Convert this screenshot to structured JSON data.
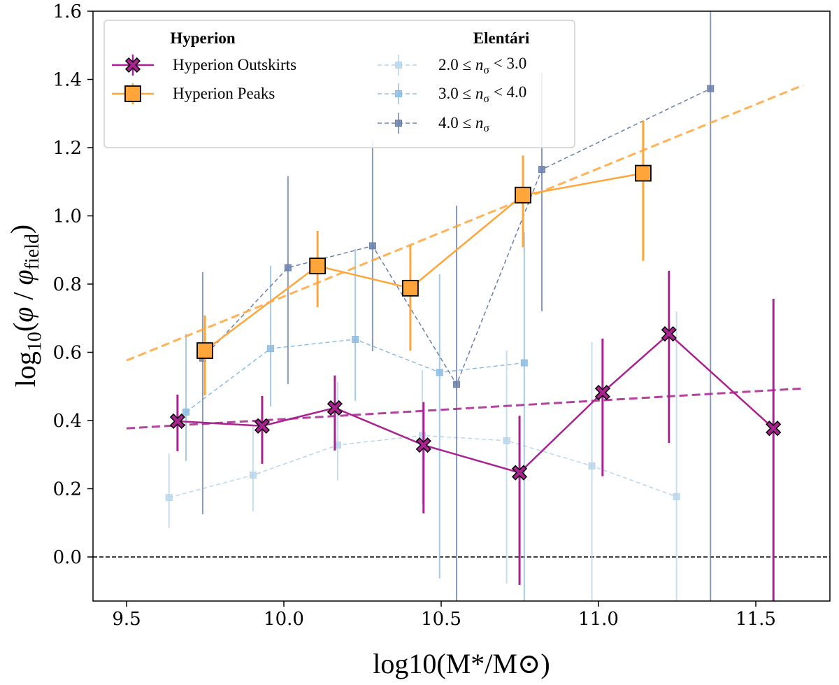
{
  "chart_data": {
    "type": "line",
    "title": "",
    "xlabel": "log10(M*/M⊙)",
    "ylabel": "log10(φ / φfield)",
    "xlim": [
      9.393,
      11.738
    ],
    "ylim": [
      -0.129,
      1.6
    ],
    "xticks": [
      "9.5",
      "10.0",
      "10.5",
      "11.0",
      "11.5"
    ],
    "yticks": [
      "0.0",
      "0.2",
      "0.4",
      "0.6",
      "0.8",
      "1.0",
      "1.2",
      "1.4",
      "1.6"
    ],
    "grid": false,
    "legend": {
      "placement": "top-left",
      "group_titles": [
        "Hyperion",
        "Elentári"
      ]
    },
    "reference_line": {
      "y": 0.0,
      "style": "dashed",
      "color": "#000000"
    },
    "series": [
      {
        "name": "Hyperion Outskirts",
        "group": "Hyperion",
        "marker": "X",
        "color": "#a8238f",
        "linestyle": "solid",
        "x": [
          9.662,
          9.931,
          10.162,
          10.444,
          10.749,
          11.013,
          11.224,
          11.556
        ],
        "y": [
          0.398,
          0.384,
          0.437,
          0.328,
          0.247,
          0.482,
          0.654,
          0.377
        ],
        "err_low": [
          0.31,
          0.273,
          0.312,
          0.128,
          -0.082,
          0.237,
          0.334,
          -0.2
        ],
        "err_high": [
          0.476,
          0.472,
          0.532,
          0.454,
          0.414,
          0.64,
          0.839,
          0.757
        ],
        "fit": {
          "x": [
            9.5,
            11.65
          ],
          "y": [
            0.377,
            0.494
          ]
        }
      },
      {
        "name": "Hyperion Peaks",
        "group": "Hyperion",
        "marker": "square",
        "color": "#ffa53a",
        "linestyle": "solid",
        "x": [
          9.749,
          10.107,
          10.402,
          10.76,
          11.142
        ],
        "y": [
          0.605,
          0.853,
          0.788,
          1.061,
          1.125
        ],
        "err_low": [
          0.474,
          0.732,
          0.605,
          0.908,
          0.868
        ],
        "err_high": [
          0.708,
          0.956,
          0.915,
          1.177,
          1.279
        ],
        "fit": {
          "x": [
            9.5,
            11.65
          ],
          "y": [
            0.576,
            1.383
          ]
        }
      },
      {
        "name": "2.0 ≤ nσ < 3.0",
        "group": "Elentári",
        "marker": "small-square",
        "color": "#b9d6eb",
        "linestyle": "dashed",
        "x": [
          9.635,
          9.902,
          10.171,
          10.44,
          10.708,
          10.979,
          11.248
        ],
        "y": [
          0.174,
          0.24,
          0.328,
          0.356,
          0.341,
          0.267,
          0.177
        ],
        "err_low": [
          0.085,
          0.133,
          0.224,
          0.155,
          -0.078,
          -0.15,
          -0.2
        ],
        "err_high": [
          0.303,
          0.383,
          0.513,
          0.548,
          0.605,
          0.63,
          0.72
        ]
      },
      {
        "name": "3.0 ≤ nσ < 4.0",
        "group": "Elentári",
        "marker": "small-square",
        "color": "#8ebde2",
        "linestyle": "dashed",
        "x": [
          9.689,
          9.958,
          10.227,
          10.495,
          10.764
        ],
        "y": [
          0.425,
          0.611,
          0.638,
          0.541,
          0.569
        ],
        "err_low": [
          0.281,
          0.441,
          0.458,
          -0.063,
          -0.2
        ],
        "err_high": [
          0.654,
          0.854,
          0.903,
          0.829,
          0.952
        ]
      },
      {
        "name": "4.0 ≤ nσ",
        "group": "Elentári",
        "marker": "small-square",
        "color": "#6b80a9",
        "linestyle": "dashed",
        "x": [
          9.742,
          10.013,
          10.282,
          10.549,
          10.82,
          11.356
        ],
        "y": [
          0.583,
          0.848,
          0.912,
          0.506,
          1.136,
          1.373
        ],
        "err_low": [
          0.125,
          0.507,
          0.603,
          -0.2,
          0.72,
          -0.2
        ],
        "err_high": [
          0.835,
          1.116,
          1.22,
          1.03,
          1.42,
          1.7
        ]
      }
    ]
  }
}
